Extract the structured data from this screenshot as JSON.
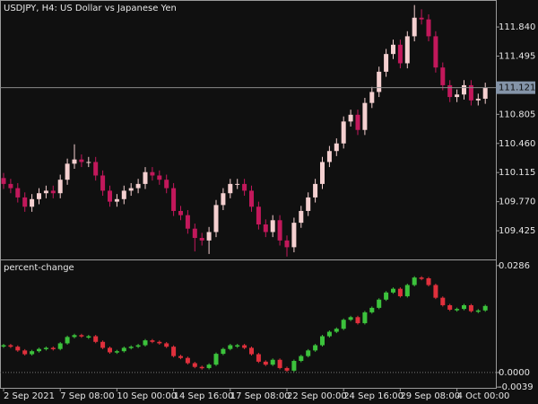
{
  "chart_data": [
    {
      "type": "candlestick",
      "title": "USDJPY, H4:  US Dollar vs Japanese Yen",
      "open": [
        110.05,
        109.98,
        109.93,
        109.82,
        109.71,
        109.8,
        109.87,
        109.9,
        109.87,
        110.03,
        110.22,
        110.27,
        110.24,
        110.24,
        110.08,
        109.9,
        109.77,
        109.8,
        109.9,
        109.93,
        109.98,
        110.12,
        110.08,
        110.03,
        109.93,
        109.66,
        109.61,
        109.45,
        109.34,
        109.31,
        109.41,
        109.73,
        109.87,
        109.98,
        109.98,
        109.9,
        109.71,
        109.5,
        109.41,
        109.55,
        109.31,
        109.23,
        109.52,
        109.66,
        109.82,
        109.98,
        110.24,
        110.37,
        110.46,
        110.72,
        110.8,
        110.62,
        110.94,
        111.07,
        111.31,
        111.52,
        111.63,
        111.41,
        111.73,
        111.95,
        111.93,
        111.73,
        111.36,
        111.15,
        111.01,
        111.04,
        111.15,
        110.97,
        110.99
      ],
      "high": [
        110.11,
        110.04,
        109.99,
        109.88,
        109.86,
        109.93,
        109.96,
        109.96,
        110.09,
        110.28,
        110.45,
        110.33,
        110.3,
        110.3,
        110.14,
        109.96,
        109.86,
        109.96,
        109.99,
        110.04,
        110.18,
        110.18,
        110.14,
        110.09,
        109.99,
        109.72,
        109.67,
        109.51,
        109.4,
        109.47,
        109.79,
        109.93,
        110.04,
        110.04,
        110.04,
        109.96,
        109.77,
        109.56,
        109.61,
        109.61,
        109.37,
        109.58,
        109.72,
        109.88,
        110.04,
        110.3,
        110.43,
        110.52,
        110.78,
        110.86,
        110.86,
        111.0,
        111.13,
        111.37,
        111.58,
        111.69,
        111.69,
        111.79,
        112.1,
        112.05,
        111.99,
        111.79,
        111.42,
        111.21,
        111.1,
        111.21,
        111.21,
        111.05,
        111.18
      ],
      "low": [
        109.92,
        109.87,
        109.76,
        109.65,
        109.65,
        109.74,
        109.81,
        109.81,
        109.81,
        109.97,
        110.16,
        110.18,
        110.18,
        110.02,
        109.84,
        109.71,
        109.71,
        109.74,
        109.84,
        109.87,
        109.92,
        110.02,
        109.97,
        109.87,
        109.6,
        109.55,
        109.39,
        109.18,
        109.25,
        109.15,
        109.35,
        109.67,
        109.81,
        109.92,
        109.84,
        109.65,
        109.44,
        109.35,
        109.35,
        109.25,
        109.12,
        109.17,
        109.46,
        109.6,
        109.76,
        109.92,
        110.18,
        110.31,
        110.4,
        110.66,
        110.56,
        110.56,
        110.88,
        111.01,
        111.25,
        111.46,
        111.35,
        111.35,
        111.67,
        111.87,
        111.67,
        111.3,
        111.09,
        110.95,
        110.95,
        110.98,
        110.91,
        110.91,
        110.93
      ],
      "close": [
        109.98,
        109.93,
        109.82,
        109.71,
        109.8,
        109.87,
        109.9,
        109.87,
        110.03,
        110.22,
        110.27,
        110.24,
        110.24,
        110.08,
        109.9,
        109.77,
        109.8,
        109.9,
        109.93,
        109.98,
        110.12,
        110.08,
        110.03,
        109.93,
        109.66,
        109.61,
        109.45,
        109.34,
        109.31,
        109.41,
        109.73,
        109.87,
        109.98,
        109.98,
        109.9,
        109.71,
        109.5,
        109.41,
        109.55,
        109.31,
        109.23,
        109.52,
        109.66,
        109.82,
        109.98,
        110.24,
        110.37,
        110.46,
        110.72,
        110.8,
        110.62,
        110.94,
        111.07,
        111.31,
        111.52,
        111.63,
        111.41,
        111.73,
        111.95,
        111.93,
        111.73,
        111.36,
        111.15,
        111.01,
        111.04,
        111.15,
        110.97,
        110.99,
        111.12
      ],
      "up_color": "#f5d0d0",
      "down_color": "#c2185b",
      "ylim": [
        109.085,
        112.16
      ],
      "yticks": [
        {
          "value": 111.84,
          "label": "111.840"
        },
        111.495,
        110.805,
        {
          "value": 110.46,
          "label": "110.460"
        },
        110.115,
        {
          "value": 109.77,
          "label": "109.770"
        },
        109.425
      ],
      "current_price": 111.121,
      "grid": false
    },
    {
      "type": "candlestick-change",
      "title": "percent-change",
      "categories": [
        "2 Sep 2021",
        null,
        null,
        null,
        null,
        null,
        null,
        null,
        "7 Sep 08:00",
        null,
        null,
        null,
        null,
        null,
        null,
        null,
        "10 Sep 00:00",
        null,
        null,
        null,
        null,
        null,
        null,
        null,
        "14 Sep 16:00",
        null,
        null,
        null,
        null,
        null,
        null,
        null,
        "17 Sep 08:00",
        null,
        null,
        null,
        null,
        null,
        null,
        null,
        "22 Sep 00:00",
        null,
        null,
        null,
        null,
        null,
        null,
        null,
        "24 Sep 16:00",
        null,
        null,
        null,
        null,
        null,
        null,
        null,
        "29 Sep 08:00",
        null,
        null,
        null,
        null,
        null,
        null,
        null,
        "4 Oct 00:00",
        null,
        null,
        null,
        null
      ],
      "values": [
        0.0073,
        0.0069,
        0.0059,
        0.0049,
        0.0057,
        0.0063,
        0.0066,
        0.0063,
        0.0078,
        0.0095,
        0.01,
        0.0097,
        0.0097,
        0.0082,
        0.0066,
        0.0054,
        0.0057,
        0.0066,
        0.0069,
        0.0073,
        0.0086,
        0.0082,
        0.0078,
        0.0069,
        0.0044,
        0.0039,
        0.0025,
        0.0015,
        0.0012,
        0.0021,
        0.005,
        0.0063,
        0.0073,
        0.0073,
        0.0066,
        0.0049,
        0.0029,
        0.0021,
        0.0034,
        0.0012,
        0.0005,
        0.0031,
        0.0044,
        0.0059,
        0.0073,
        0.0097,
        0.0109,
        0.0117,
        0.0141,
        0.0148,
        0.0132,
        0.0161,
        0.0173,
        0.0195,
        0.0214,
        0.0224,
        0.0204,
        0.0234,
        0.0254,
        0.0252,
        0.0234,
        0.02,
        0.018,
        0.0168,
        0.017,
        0.018,
        0.0164,
        0.0166,
        0.0178
      ],
      "up_color": "#3cc23c",
      "down_color": "#e0303c",
      "ylim": [
        -0.0041,
        0.03
      ],
      "yticks": [
        0.0286,
        {
          "value": 0,
          "label": "0.0000"
        },
        -0.0039
      ]
    }
  ]
}
